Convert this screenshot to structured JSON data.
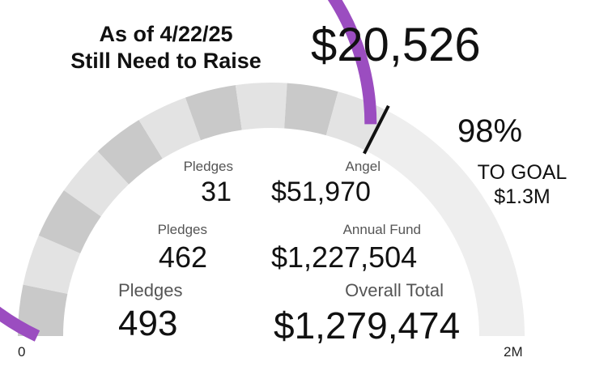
{
  "header": {
    "line1": "As of 4/22/25",
    "line2": "Still Need to Raise",
    "amount": "$20,526"
  },
  "progress": {
    "percent_text": "98%",
    "goal_line1": "TO GOAL",
    "goal_line2": "$1.3M"
  },
  "stats": {
    "angel": {
      "count_label": "Pledges",
      "count": "31",
      "amount_label": "Angel",
      "amount": "$51,970"
    },
    "annual": {
      "count_label": "Pledges",
      "count": "462",
      "amount_label": "Annual Fund",
      "amount": "$1,227,504"
    },
    "overall": {
      "count_label": "Pledges",
      "count": "493",
      "amount_label": "Overall Total",
      "amount": "$1,279,474"
    }
  },
  "chart_data": {
    "type": "gauge",
    "min": 0,
    "max": 2000000,
    "min_label": "0",
    "max_label": "2M",
    "value": 1279474,
    "target": 1300000,
    "colors": {
      "value": "#9b4dc0",
      "band_dark": "#c9c9c9",
      "band_light": "#e3e3e3",
      "band_remaining": "#eeeeee",
      "target_marker": "#111111"
    }
  }
}
